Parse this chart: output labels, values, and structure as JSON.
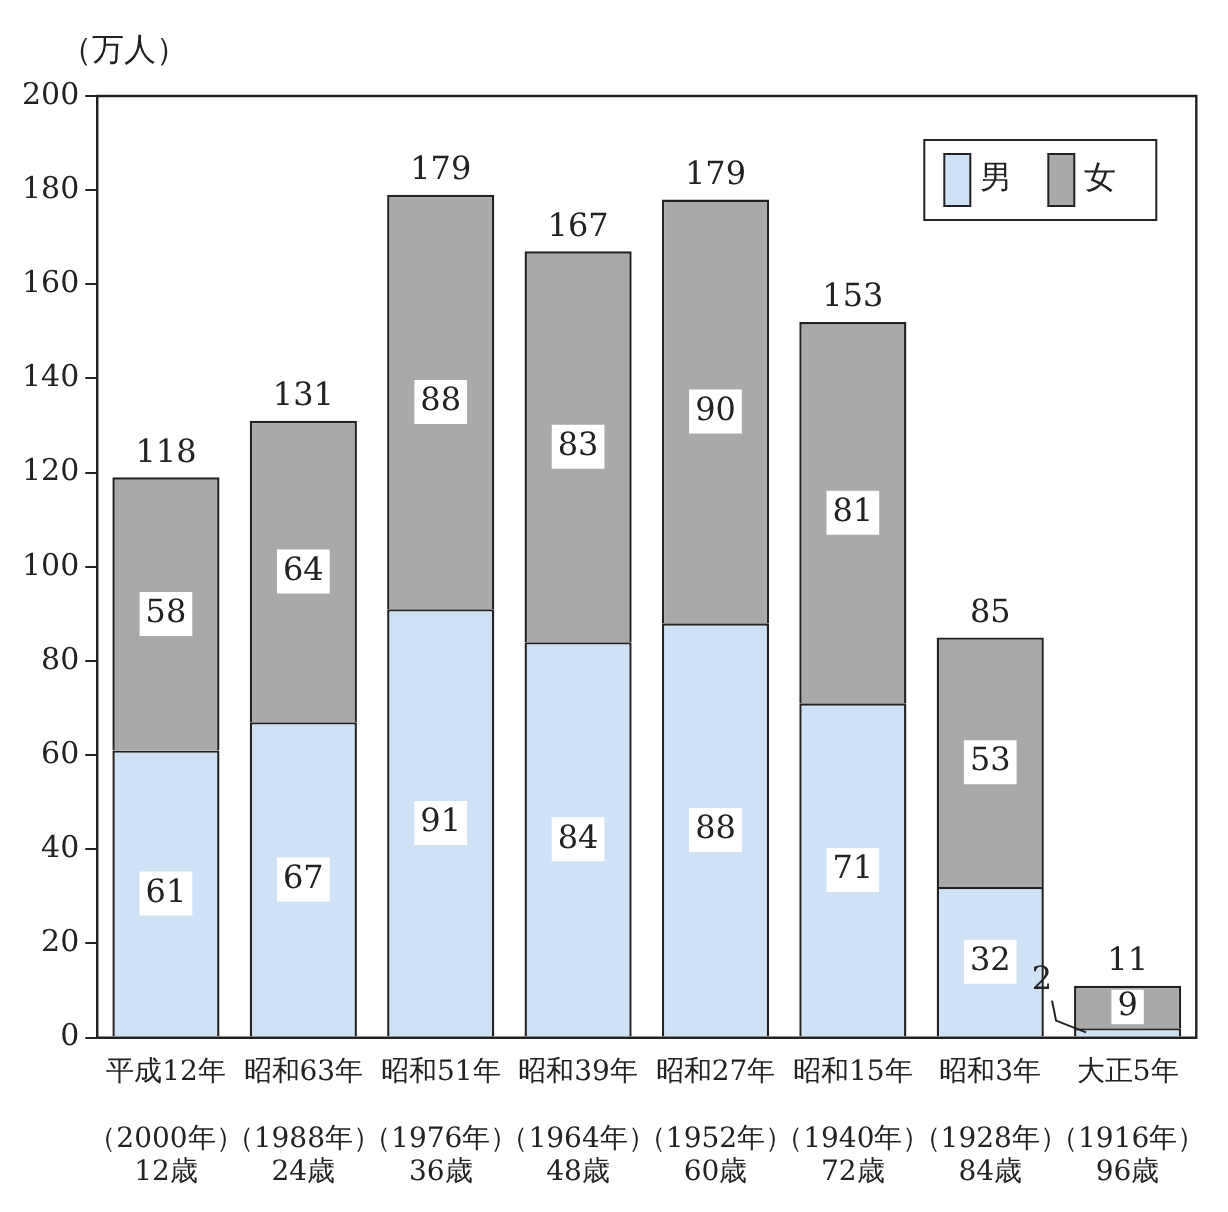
{
  "chart_data": {
    "type": "bar",
    "stacked": true,
    "ylabel": "（万人）",
    "categories": [
      "平成12年（2000年）12歳",
      "昭和63年（1988年）24歳",
      "昭和51年（1976年）36歳",
      "昭和39年（1964年）48歳",
      "昭和27年（1952年）60歳",
      "昭和15年（1940年）72歳",
      "昭和3年（1928年）84歳",
      "大正5年（1916年）96歳"
    ],
    "series": [
      {
        "name": "男",
        "color": "#cfe2f5",
        "values": [
          61,
          67,
          91,
          84,
          88,
          71,
          32,
          2
        ]
      },
      {
        "name": "女",
        "color": "#a9a9a9",
        "values": [
          58,
          64,
          88,
          83,
          90,
          81,
          53,
          9
        ]
      }
    ],
    "totals": [
      "118",
      "131",
      "179",
      "167",
      "179",
      "153",
      "85",
      "11"
    ],
    "data_labels": true,
    "ylim": [
      0,
      200
    ],
    "yticks": [
      0,
      20,
      40,
      60,
      80,
      100,
      120,
      140,
      160,
      180,
      200
    ],
    "grid": false,
    "legend": "top right"
  }
}
